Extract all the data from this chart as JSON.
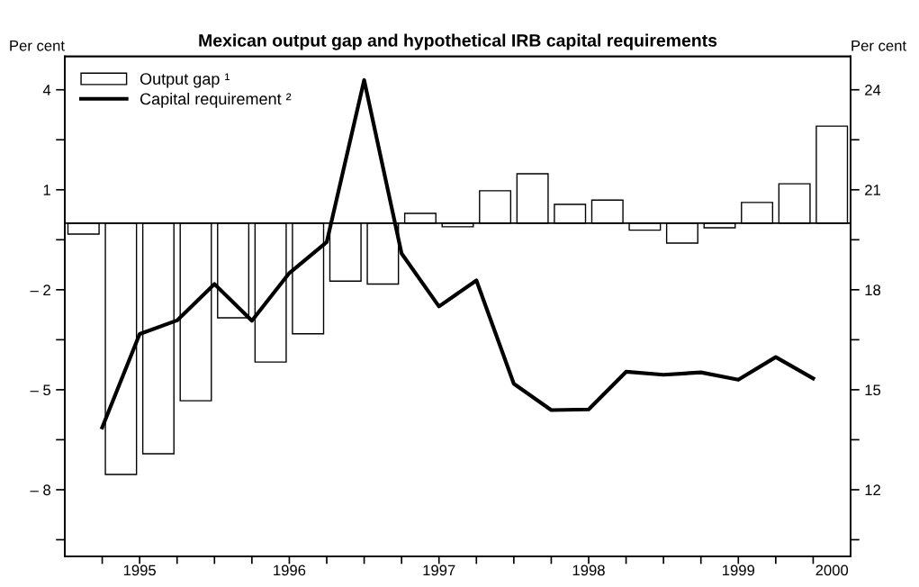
{
  "chart_data": {
    "type": "bar",
    "title": "Mexican output gap and hypothetical IRB capital requirements",
    "ylabel": "Per cent",
    "y2label": "Per cent",
    "series": [
      {
        "name": "Output gap ¹",
        "color": "#ffffff",
        "x": [
          1995.125,
          1995.375,
          1995.625,
          1995.875,
          1996.125,
          1996.375,
          1996.625,
          1996.875,
          1997.125,
          1997.375,
          1997.625,
          1997.875,
          1998.125,
          1998.375,
          1998.625,
          1998.875,
          1999.125,
          1999.375,
          1999.625,
          1999.875,
          2000.125
        ],
        "values": [
          -0.33,
          -7.54,
          -6.92,
          -5.33,
          -2.84,
          -4.17,
          -3.32,
          -1.74,
          -1.83,
          0.29,
          -0.11,
          0.97,
          1.48,
          0.56,
          0.69,
          -0.21,
          -0.6,
          -0.14,
          0.62,
          1.18,
          2.91
        ]
      },
      {
        "name": "Capital requirement ²",
        "type": "line",
        "axis": "y2",
        "color": "#000000",
        "x": [
          1995.25,
          1995.5,
          1995.75,
          1996.0,
          1996.25,
          1996.5,
          1996.75,
          1997.0,
          1997.25,
          1997.5,
          1997.75,
          1998.0,
          1998.25,
          1998.5,
          1998.75,
          1999.0,
          1999.25,
          1999.5,
          1999.75,
          2000.0
        ],
        "values": [
          13.87,
          16.67,
          17.08,
          18.17,
          17.07,
          18.5,
          19.43,
          24.29,
          19.09,
          17.5,
          18.28,
          15.18,
          14.39,
          14.41,
          15.54,
          15.45,
          15.52,
          15.3,
          15.98,
          15.34
        ]
      }
    ],
    "xlim": [
      1995,
      2000.25
    ],
    "xticks": [
      {
        "value": 1995.25,
        "label": null
      },
      {
        "value": 1995.5,
        "label": "1995"
      },
      {
        "value": 1995.75,
        "label": null
      },
      {
        "value": 1996,
        "label": null
      },
      {
        "value": 1996.25,
        "label": null
      },
      {
        "value": 1996.5,
        "label": "1996"
      },
      {
        "value": 1996.75,
        "label": null
      },
      {
        "value": 1997,
        "label": null
      },
      {
        "value": 1997.25,
        "label": null
      },
      {
        "value": 1997.5,
        "label": "1997"
      },
      {
        "value": 1997.75,
        "label": null
      },
      {
        "value": 1998,
        "label": null
      },
      {
        "value": 1998.25,
        "label": null
      },
      {
        "value": 1998.5,
        "label": "1998"
      },
      {
        "value": 1998.75,
        "label": null
      },
      {
        "value": 1999,
        "label": null
      },
      {
        "value": 1999.25,
        "label": null
      },
      {
        "value": 1999.5,
        "label": "1999"
      },
      {
        "value": 1999.75,
        "label": null
      },
      {
        "value": 2000,
        "label": null
      },
      {
        "value": 2000.125,
        "label": "2000"
      }
    ],
    "ylim": [
      -10,
      5
    ],
    "yticks": [
      4,
      {
        "value": 2.5,
        "label": null
      },
      1,
      {
        "value": -0.5,
        "label": null
      },
      {
        "value": -2,
        "label": "– 2"
      },
      {
        "value": -3.5,
        "label": null
      },
      {
        "value": -5,
        "label": "– 5"
      },
      {
        "value": -6.5,
        "label": null
      },
      {
        "value": -8,
        "label": "– 8"
      },
      {
        "value": -9.5,
        "label": null
      }
    ],
    "y2lim": [
      10,
      25
    ],
    "y2ticks": [
      24,
      {
        "value": 22.5,
        "label": null
      },
      21,
      {
        "value": 19.5,
        "label": null
      },
      18,
      {
        "value": 16.5,
        "label": null
      },
      15,
      {
        "value": 13.5,
        "label": null
      },
      12,
      {
        "value": 10.5,
        "label": null
      }
    ],
    "ref_lines": [
      {
        "axis": "y",
        "value": 0,
        "color": "#000000"
      }
    ],
    "legend": "top left",
    "grid": false
  }
}
